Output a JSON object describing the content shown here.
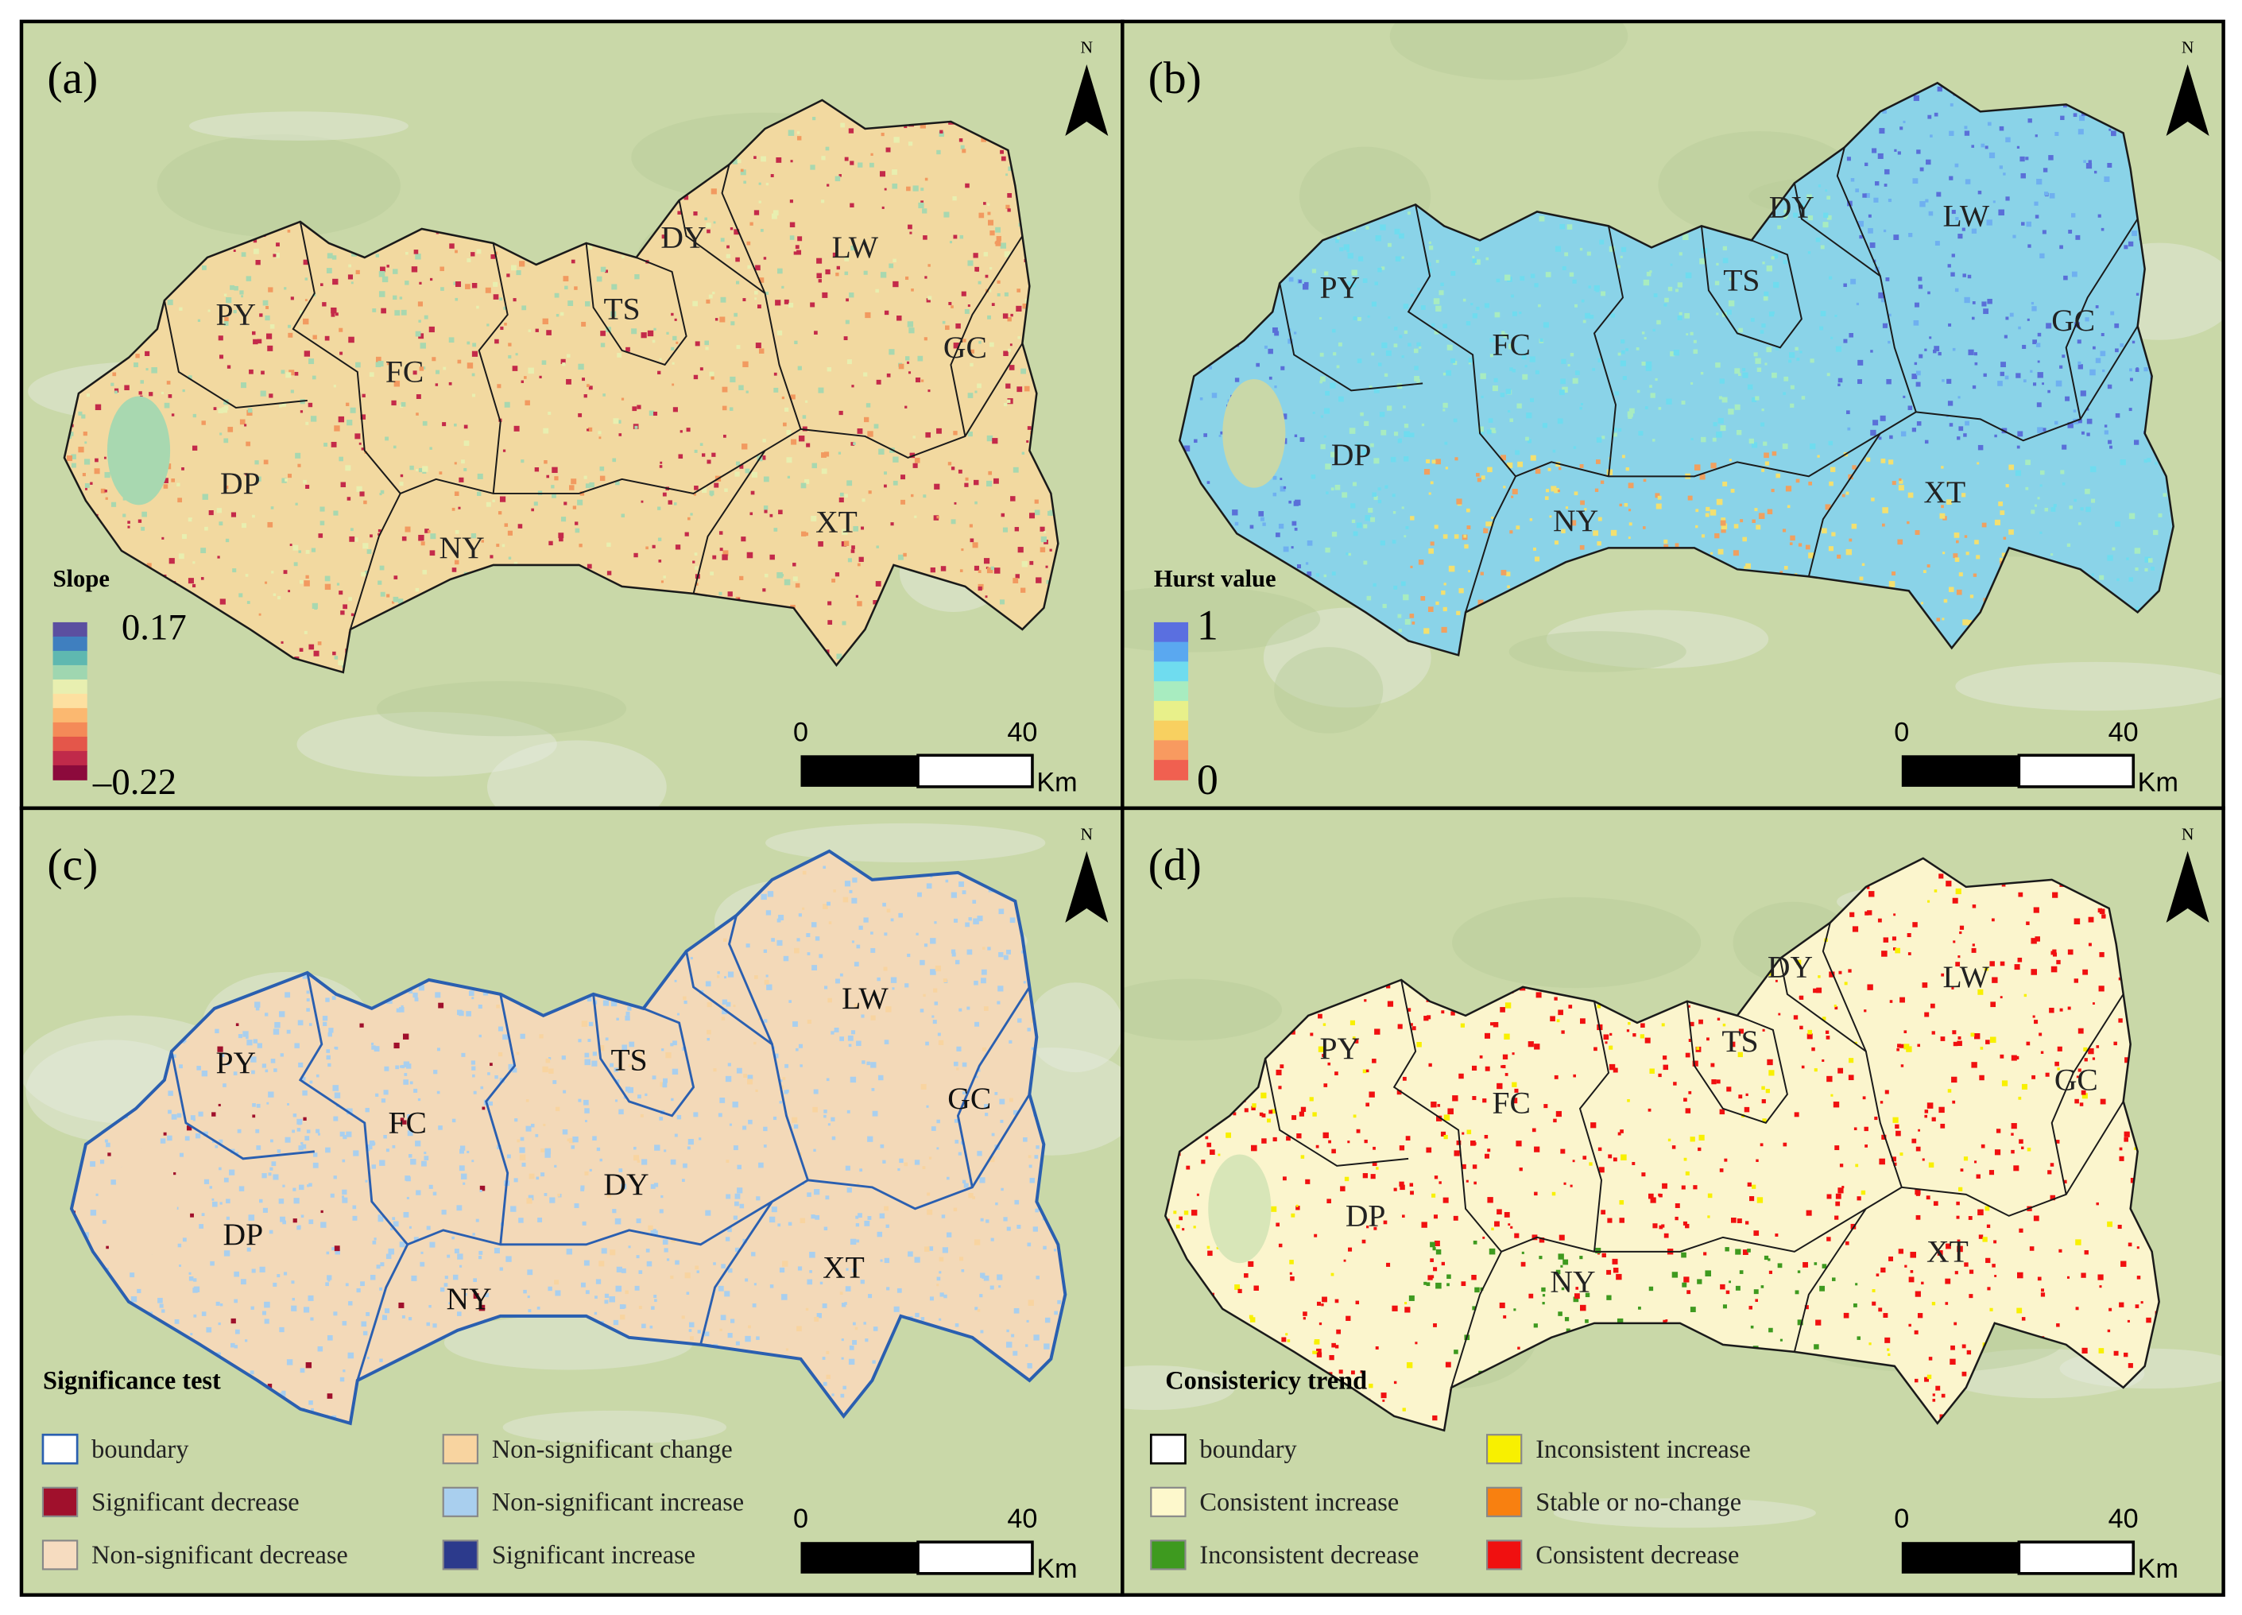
{
  "panels": [
    {
      "label": "(a)",
      "north": "N",
      "regions": [
        "PY",
        "FC",
        "TS",
        "DY",
        "LW",
        "GC",
        "DP",
        "NY",
        "XT"
      ],
      "legend": {
        "title": "Slope",
        "max": "0.17",
        "min": "–0.22",
        "ramp": [
          "#5b4fa0",
          "#3f7fbf",
          "#5fb8b0",
          "#9fd6b0",
          "#e8efb0",
          "#fde0a0",
          "#fbb870",
          "#f48a58",
          "#e4564a",
          "#c02a4a",
          "#8c0a3c"
        ]
      },
      "scale_bar": {
        "start": "0",
        "end": "40",
        "unit": "Km"
      }
    },
    {
      "label": "(b)",
      "north": "N",
      "regions": [
        "PY",
        "FC",
        "TS",
        "DY",
        "LW",
        "GC",
        "DP",
        "NY",
        "XT"
      ],
      "legend": {
        "title": "Hurst value",
        "max": "1",
        "min": "0",
        "ramp": [
          "#5a6fe0",
          "#5aa8f0",
          "#6fdcef",
          "#a8ecc0",
          "#e8f08a",
          "#f8d060",
          "#f89a60",
          "#f06050"
        ]
      },
      "scale_bar": {
        "start": "0",
        "end": "40",
        "unit": "Km"
      }
    },
    {
      "label": "(c)",
      "north": "N",
      "regions": [
        "PY",
        "FC",
        "TS",
        "DY",
        "LW",
        "GC",
        "DP",
        "NY",
        "XT"
      ],
      "legend": {
        "title": "Significance test",
        "items": [
          {
            "label": "boundary",
            "color": "#2a5fb0"
          },
          {
            "label": "Significant decrease",
            "color": "#a0102c"
          },
          {
            "label": "Non-significant decrease",
            "color": "#f6dcc0"
          },
          {
            "label": "Non-significant change",
            "color": "#f8d4a0"
          },
          {
            "label": "Non-significant increase",
            "color": "#a9cfee"
          },
          {
            "label": "Significant increase",
            "color": "#2c3a8c"
          }
        ]
      },
      "scale_bar": {
        "start": "0",
        "end": "40",
        "unit": "Km"
      }
    },
    {
      "label": "(d)",
      "north": "N",
      "regions": [
        "PY",
        "FC",
        "TS",
        "DY",
        "LW",
        "GC",
        "DP",
        "NY",
        "XT"
      ],
      "legend": {
        "title": "Consistericy trend",
        "items": [
          {
            "label": "boundary",
            "color": "#000000"
          },
          {
            "label": "Consistent increase",
            "color": "#fdf8cc"
          },
          {
            "label": "Inconsistent decrease",
            "color": "#3e9a1f"
          },
          {
            "label": "Inconsistent increase",
            "color": "#f8f000"
          },
          {
            "label": "Stable or no-change",
            "color": "#f88010"
          },
          {
            "label": "Consistent decrease",
            "color": "#f01010"
          }
        ]
      },
      "scale_bar": {
        "start": "0",
        "end": "40",
        "unit": "Km"
      }
    }
  ]
}
